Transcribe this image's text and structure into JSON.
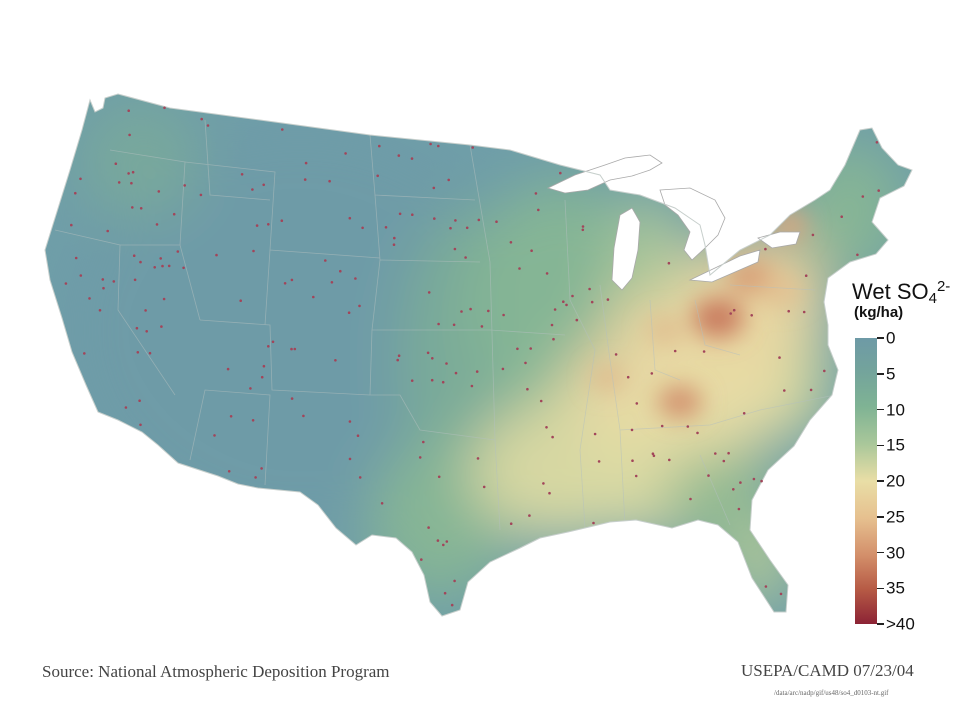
{
  "legend": {
    "title_main": "Wet SO",
    "title_sub": "4",
    "title_sup": "2-",
    "unit": "(kg/ha)",
    "ticks": [
      "0",
      "5",
      "10",
      "15",
      "20",
      "25",
      "30",
      "35",
      ">40"
    ],
    "colors": [
      "#6e9aa6",
      "#73a39c",
      "#7fb394",
      "#a9c79a",
      "#e9dea6",
      "#e6c08f",
      "#d38f6a",
      "#b65a45",
      "#8c2335"
    ]
  },
  "footer": {
    "source": "Source: National Atmospheric Deposition Program",
    "credit": "USEPA/CAMD 07/23/04",
    "filepath": "/data/arc/nadp/gif/us48/so4_d0103-nt.gif"
  },
  "map": {
    "region": "contiguous-united-states",
    "station-marker-color": "#a2455a",
    "lake-color": "#ffffff"
  }
}
